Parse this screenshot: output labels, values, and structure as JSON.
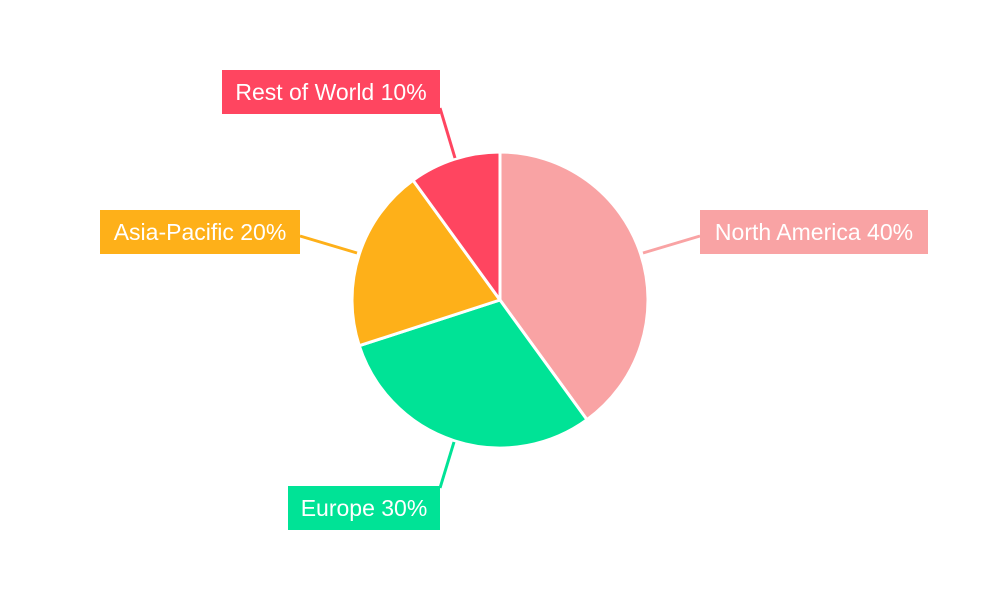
{
  "chart_data": {
    "type": "pie",
    "title": "",
    "categories": [
      "North America",
      "Europe",
      "Asia-Pacific",
      "Rest of World"
    ],
    "values": [
      40,
      30,
      20,
      10
    ],
    "labels": [
      "North America 40%",
      "Europe 30%",
      "Asia-Pacific 20%",
      "Rest of World 10%"
    ],
    "colors": [
      "#F9A3A4",
      "#00E396",
      "#FEB019",
      "#FF4560"
    ],
    "start_angle": "top, clockwise",
    "legend": "none"
  }
}
